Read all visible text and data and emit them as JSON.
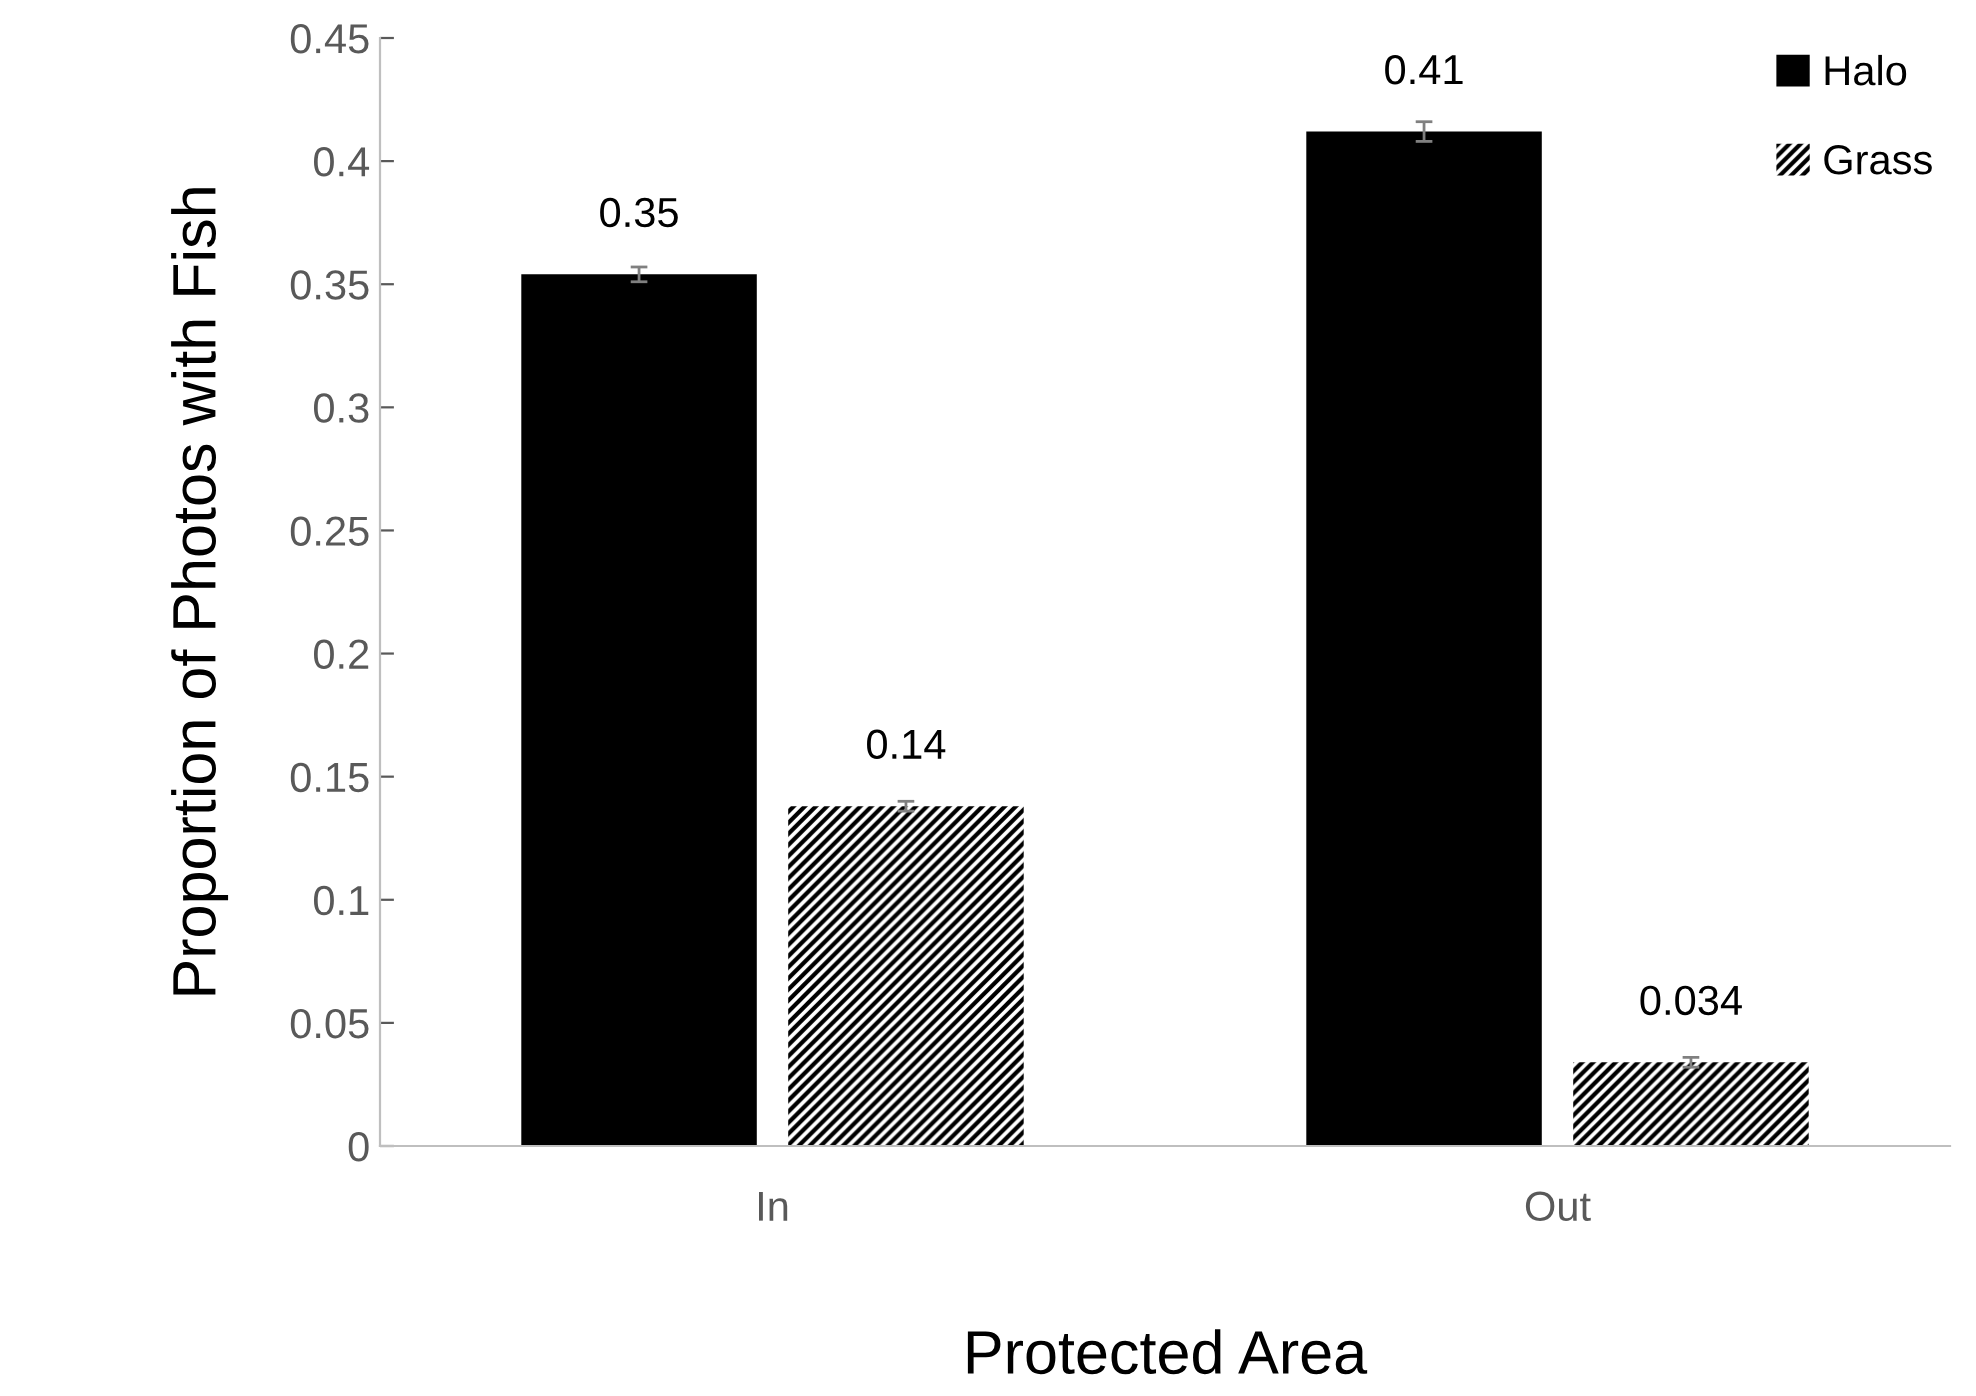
{
  "chart_data": {
    "type": "bar",
    "xlabel": "Protected Area",
    "ylabel": "Proportion of Photos with Fish",
    "categories": [
      "In",
      "Out"
    ],
    "series": [
      {
        "name": "Halo",
        "color": "#000000",
        "values": [
          0.354,
          0.412
        ],
        "errors": [
          0.003,
          0.004
        ],
        "value_labels": [
          "0.35",
          "0.41"
        ]
      },
      {
        "name": "Grass",
        "color": "#000000",
        "values": [
          0.138,
          0.034
        ],
        "errors": [
          0.002,
          0.002
        ],
        "value_labels": [
          "0.14",
          "0.034"
        ]
      }
    ],
    "ylim": [
      0,
      0.45
    ],
    "yticks": [
      0,
      0.05,
      0.1,
      0.15,
      0.2,
      0.25,
      0.3,
      0.35,
      0.4,
      0.45
    ],
    "legend": "top right",
    "grid": false
  }
}
